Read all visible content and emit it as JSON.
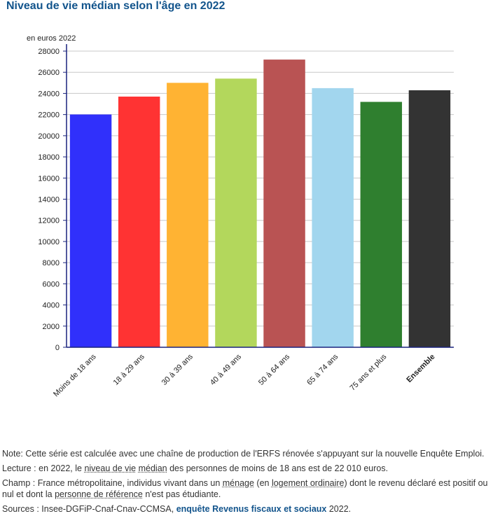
{
  "title": "Niveau de vie médian selon l'âge en 2022",
  "colors": {
    "title": "#12548c",
    "axis": "#1a237e",
    "grid": "#c8c8c8",
    "link": "#12548c"
  },
  "chart_data": {
    "type": "bar",
    "title": "Niveau de vie médian selon l'âge en 2022",
    "ylabel": "en euros 2022",
    "xlabel": "",
    "ylim": [
      0,
      28000
    ],
    "yticks": [
      0,
      2000,
      4000,
      6000,
      8000,
      10000,
      12000,
      14000,
      16000,
      18000,
      20000,
      22000,
      24000,
      26000,
      28000
    ],
    "yticks_labels": [
      "0",
      "2000",
      "4000",
      "6000",
      "8000",
      "10000",
      "12000",
      "14000",
      "16000",
      "18000",
      "20000",
      "22000",
      "24000",
      "26000",
      "28000"
    ],
    "grid": true,
    "legend": "none",
    "categories": [
      "Moins de 18 ans",
      "18 à 29 ans",
      "30 à 39 ans",
      "40 à 49 ans",
      "50 à 64 ans",
      "65 à 74 ans",
      "75 ans et plus",
      "Ensemble"
    ],
    "values": [
      22010,
      23700,
      25000,
      25400,
      27200,
      24500,
      23200,
      24300
    ],
    "bar_colors": [
      "#3030fb",
      "#ff3333",
      "#ffb333",
      "#b3d75c",
      "#b95353",
      "#a2d6ee",
      "#2f7f2f",
      "#333333"
    ],
    "bold_categories": [
      "Ensemble"
    ]
  },
  "notes": {
    "note": "Note: Cette série est calculée avec une chaîne de production de l'ERFS rénovée s'appuyant sur la nouvelle Enquête Emploi.",
    "lecture": {
      "prefix": "Lecture : en 2022, le ",
      "term1": "niveau de vie",
      "space": " ",
      "term2": "médian",
      "suffix": " des personnes de moins de 18 ans est de 22 010 euros."
    },
    "champ": {
      "prefix": "Champ : France métropolitaine, individus vivant dans un ",
      "term1": "ménage",
      "mid1": " (en ",
      "term2": "logement ordinaire",
      "mid2": ") dont le revenu déclaré est positif ou nul et dont la ",
      "term3": "personne de référence",
      "suffix": " n'est pas étudiante."
    },
    "sources": {
      "prefix": "Sources : Insee-DGFiP-Cnaf-Cnav-CCMSA, ",
      "link": "enquête Revenus fiscaux et sociaux",
      "suffix": " 2022."
    }
  }
}
